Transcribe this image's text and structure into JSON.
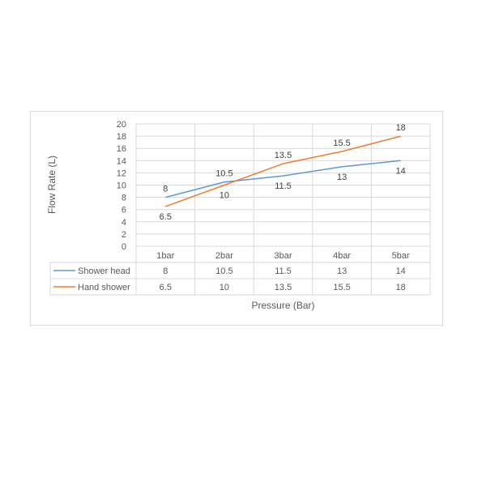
{
  "chart_data": {
    "type": "line",
    "categories": [
      "1bar",
      "2bar",
      "3bar",
      "4bar",
      "5bar"
    ],
    "series": [
      {
        "name": "Shower head",
        "values": [
          8,
          10.5,
          11.5,
          13,
          14
        ],
        "color": "#5b9bd5"
      },
      {
        "name": "Hand shower",
        "values": [
          6.5,
          10,
          13.5,
          15.5,
          18
        ],
        "color": "#ed7d31"
      }
    ],
    "xlabel": "Pressure (Bar)",
    "ylabel": "Flow Rate (L)",
    "ylim": [
      0,
      20
    ],
    "yticks": [
      "0",
      "2",
      "4",
      "6",
      "8",
      "10",
      "12",
      "14",
      "16",
      "18",
      "20"
    ],
    "grid": true,
    "data_labels": true,
    "data_table": true
  }
}
